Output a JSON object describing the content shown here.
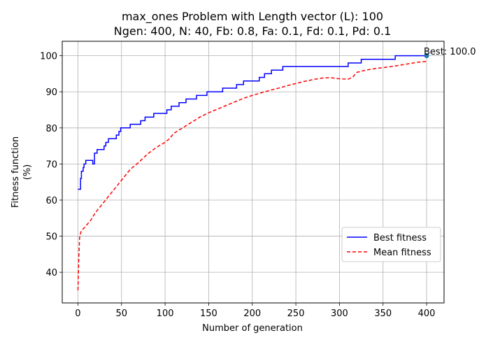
{
  "chart_data": {
    "type": "line",
    "title": "max_ones Problem with Length vector (L): 100",
    "subtitle": "Ngen: 400, N: 40, Fb: 0.8, Fa: 0.1, Fd: 0.1, Pd: 0.1",
    "xlabel": "Number of generation",
    "ylabel_line1": "Fitness function",
    "ylabel_line2": "(%)",
    "xlim": [
      -18,
      420
    ],
    "ylim": [
      31.5,
      104
    ],
    "xticks": [
      0,
      50,
      100,
      150,
      200,
      250,
      300,
      350,
      400
    ],
    "yticks": [
      40,
      50,
      60,
      70,
      80,
      90,
      100
    ],
    "grid": true,
    "legend_position": "lower-right",
    "annotation": {
      "text": "Best: 100.0",
      "x": 400,
      "y": 100
    },
    "series": [
      {
        "name": "Best fitness",
        "color": "#0000ff",
        "style": "solid",
        "x": [
          0,
          3,
          4,
          6,
          7,
          9,
          15,
          17,
          19,
          22,
          30,
          32,
          35,
          42,
          44,
          47,
          49,
          60,
          72,
          77,
          87,
          102,
          107,
          116,
          124,
          136,
          148,
          166,
          182,
          190,
          208,
          214,
          222,
          235,
          240,
          255,
          270,
          300,
          310,
          325,
          350,
          364,
          380,
          400
        ],
        "y": [
          63,
          66,
          68,
          69,
          70,
          71,
          71,
          70,
          73,
          74,
          75,
          76,
          77,
          77,
          78,
          79,
          80,
          81,
          82,
          83,
          84,
          85,
          86,
          87,
          88,
          89,
          90,
          91,
          92,
          93,
          94,
          95,
          96,
          97,
          97,
          97,
          97,
          97,
          98,
          99,
          99,
          100,
          100,
          100
        ]
      },
      {
        "name": "Mean fitness",
        "color": "#ff0000",
        "style": "dashed",
        "x": [
          0,
          1,
          2,
          4,
          8,
          15,
          20,
          30,
          40,
          50,
          60,
          70,
          80,
          90,
          100,
          105,
          110,
          120,
          130,
          140,
          150,
          160,
          170,
          180,
          190,
          200,
          210,
          220,
          230,
          240,
          250,
          260,
          270,
          280,
          290,
          300,
          310,
          315,
          320,
          330,
          340,
          350,
          360,
          370,
          380,
          390,
          400
        ],
        "y": [
          35,
          44,
          50,
          51.5,
          52.5,
          54.5,
          56.5,
          59.5,
          62.5,
          65.5,
          68.5,
          70.5,
          72.8,
          74.6,
          76,
          77,
          78.5,
          80,
          81.5,
          83,
          84.2,
          85.2,
          86.2,
          87.2,
          88.2,
          89,
          89.7,
          90.4,
          91,
          91.7,
          92.3,
          92.9,
          93.4,
          93.8,
          93.9,
          93.6,
          93.5,
          94,
          95.4,
          96,
          96.4,
          96.7,
          97,
          97.4,
          97.8,
          98.2,
          98.4
        ]
      }
    ]
  }
}
